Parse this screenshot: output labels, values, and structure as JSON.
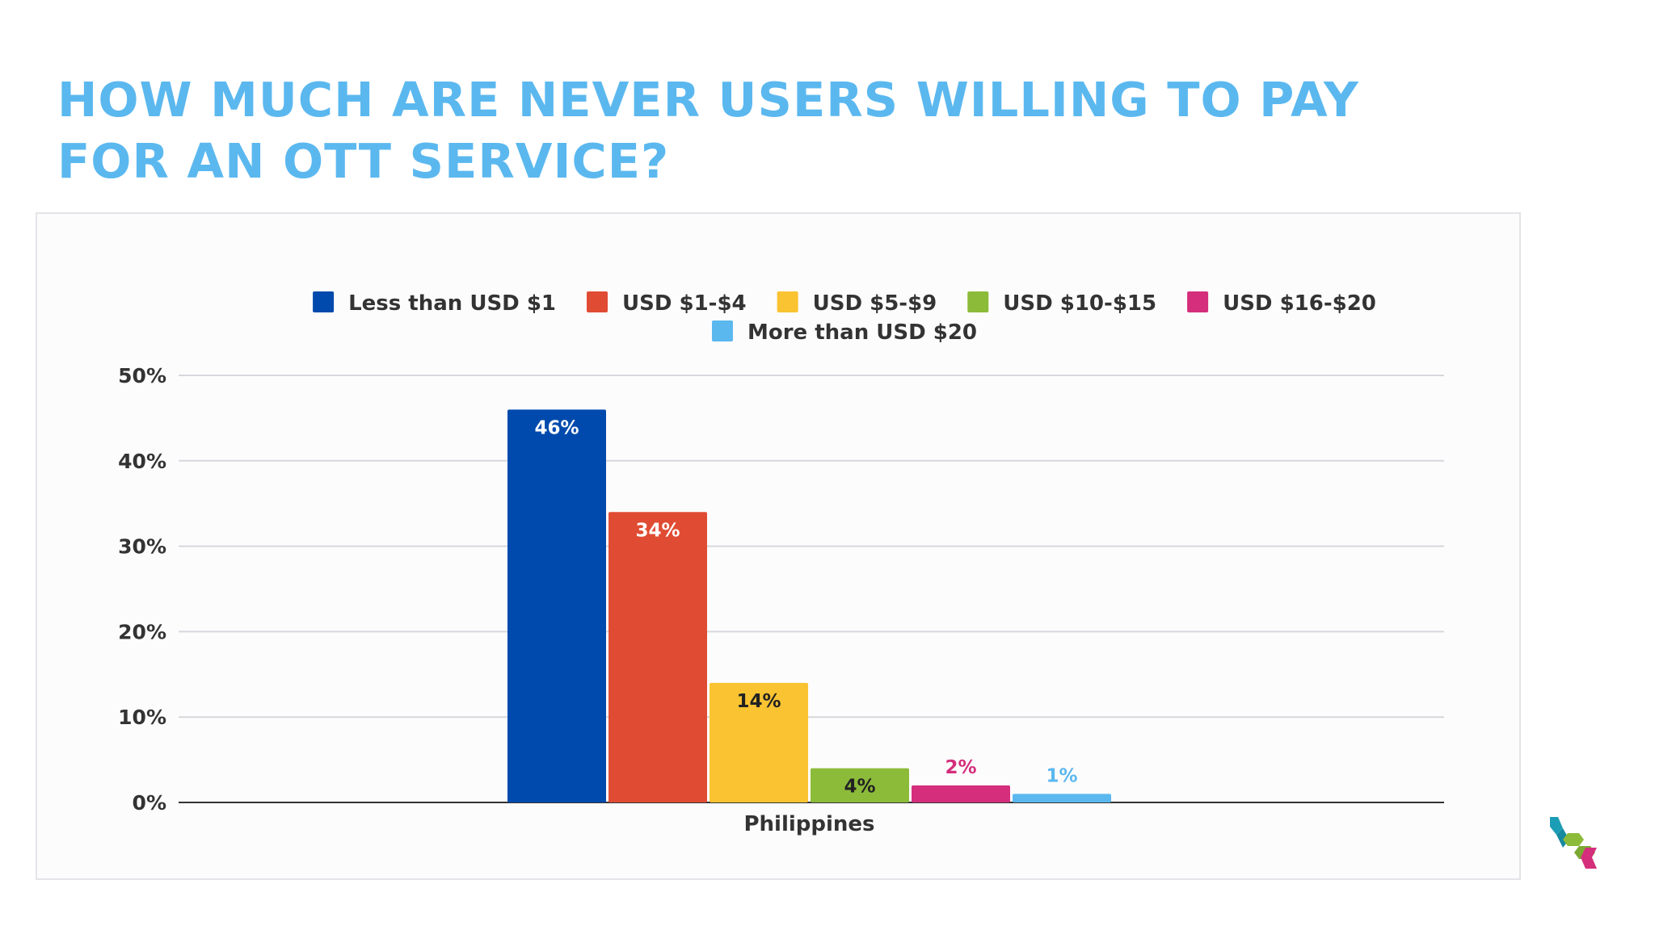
{
  "slide": {
    "title_line1": "HOW MUCH ARE NEVER USERS WILLING TO PAY",
    "title_line2": "FOR AN OTT SERVICE?"
  },
  "colors": {
    "title": "#5bb8ef",
    "grid": "#d8d6dc",
    "axis": "#333333",
    "text": "#333333"
  },
  "chart_data": {
    "type": "bar",
    "categories": [
      "Philippines"
    ],
    "series": [
      {
        "name": "Less than USD $1",
        "values": [
          46
        ],
        "color": "#004aad",
        "label": "46%",
        "label_color": "#ffffff",
        "label_position": "inside"
      },
      {
        "name": "USD $1-$4",
        "values": [
          34
        ],
        "color": "#e04c33",
        "label": "34%",
        "label_color": "#ffffff",
        "label_position": "inside"
      },
      {
        "name": "USD $5-$9",
        "values": [
          14
        ],
        "color": "#f9c332",
        "label": "14%",
        "label_color": "#222222",
        "label_position": "inside"
      },
      {
        "name": "USD $10-$15",
        "values": [
          4
        ],
        "color": "#8cbb3a",
        "label": "4%",
        "label_color": "#222222",
        "label_position": "inside"
      },
      {
        "name": "USD $16-$20",
        "values": [
          2
        ],
        "color": "#d42e7c",
        "label": "2%",
        "label_color": "#d42e7c",
        "label_position": "above"
      },
      {
        "name": "More than USD $20",
        "values": [
          1
        ],
        "color": "#5bb8ef",
        "label": "1%",
        "label_color": "#5bb8ef",
        "label_position": "above"
      }
    ],
    "yticks": [
      "0%",
      "10%",
      "20%",
      "30%",
      "40%",
      "50%"
    ],
    "ylim": [
      0,
      50
    ],
    "xlabel": "",
    "ylabel": "",
    "grid": true,
    "legend": "top"
  }
}
